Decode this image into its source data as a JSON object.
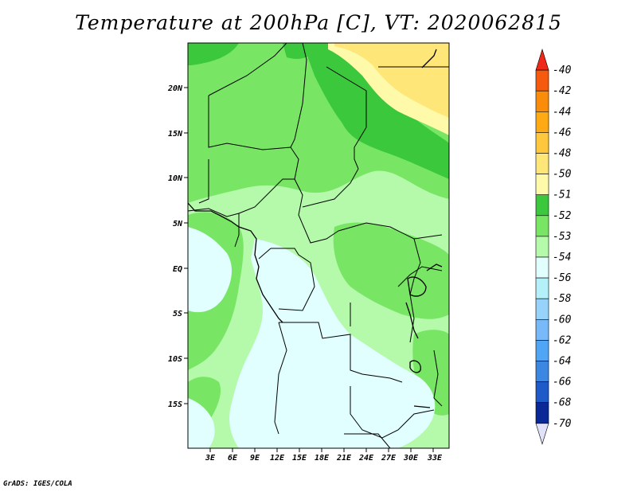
{
  "title": "Temperature at 200hPa [C], VT: 2020062815",
  "footer": "GrADS: IGES/COLA",
  "map": {
    "lon_labels": [
      "3E",
      "6E",
      "9E",
      "12E",
      "15E",
      "18E",
      "21E",
      "24E",
      "27E",
      "30E",
      "33E"
    ],
    "lat_labels": [
      "20N",
      "15N",
      "10N",
      "5N",
      "EQ",
      "5S",
      "10S",
      "15S"
    ],
    "lon_range": [
      0,
      35
    ],
    "lat_range": [
      -20,
      25
    ]
  },
  "legend": {
    "labels": [
      "-40",
      "-42",
      "-44",
      "-46",
      "-48",
      "-50",
      "-51",
      "-52",
      "-53",
      "-54",
      "-56",
      "-58",
      "-60",
      "-62",
      "-64",
      "-66",
      "-68",
      "-70"
    ],
    "colors": [
      "#f0281a",
      "#f55a0f",
      "#fa8c0a",
      "#ffaa14",
      "#ffc83c",
      "#ffe678",
      "#fffaaa",
      "#3cc83c",
      "#78e664",
      "#b4faaa",
      "#e1ffff",
      "#b4f0fa",
      "#96d2fa",
      "#78b9fa",
      "#50a5f5",
      "#3c87e1",
      "#1e5ac8",
      "#0a2896",
      "#e1e1fa"
    ]
  }
}
